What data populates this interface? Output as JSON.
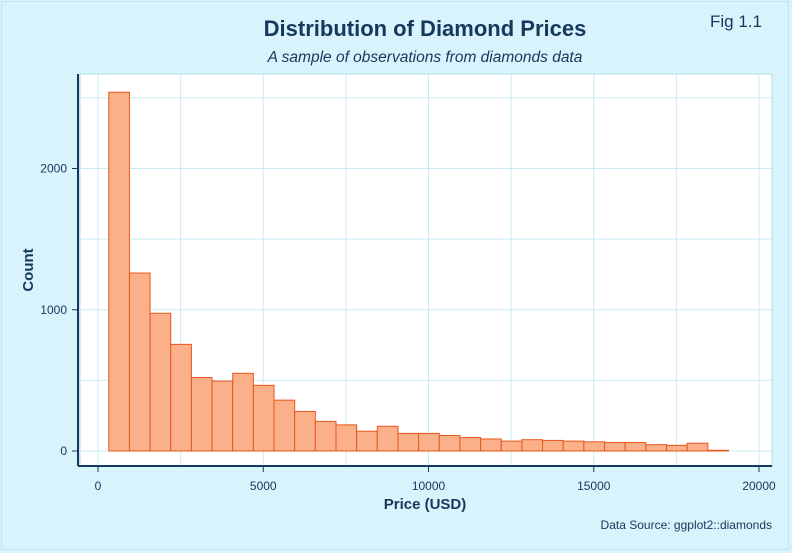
{
  "header": {
    "title": "Distribution of Diamond Prices",
    "subtitle": "A sample of observations from diamonds data",
    "fig_label": "Fig 1.1"
  },
  "footer": {
    "note": "Data Source: ggplot2::diamonds"
  },
  "colors": {
    "background": "#d8f3fb",
    "plot_background": "#ffffff",
    "bar_fill": "#fcb08a",
    "bar_stroke": "#e8561c",
    "grid": "#c7ecf2",
    "axis": "#16385d",
    "text": "#16385d"
  },
  "chart_data": {
    "type": "bar",
    "title": "Distribution of Diamond Prices",
    "subtitle": "A sample of observations from diamonds data",
    "xlabel": "Price (USD)",
    "ylabel": "Count",
    "xlim": [
      0,
      20000
    ],
    "ylim": [
      0,
      2600
    ],
    "xticks": [
      0,
      5000,
      10000,
      15000,
      20000
    ],
    "yticks": [
      0,
      1000,
      2000
    ],
    "grid": true,
    "bin_width": 625,
    "bin_start": 326,
    "values": [
      2540,
      1260,
      975,
      755,
      520,
      495,
      550,
      465,
      360,
      280,
      210,
      185,
      140,
      175,
      125,
      125,
      110,
      95,
      85,
      70,
      80,
      75,
      70,
      65,
      60,
      60,
      45,
      40,
      55,
      5
    ]
  }
}
